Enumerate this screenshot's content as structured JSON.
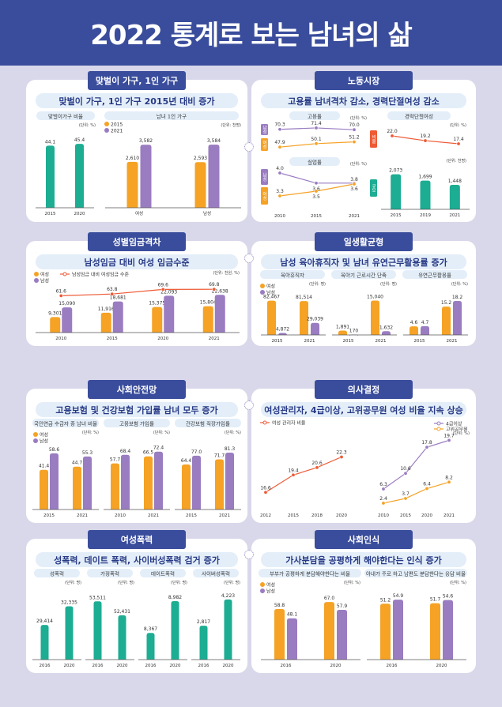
{
  "title": "2022 통계로 보는 남녀의 삶",
  "colors": {
    "female": "#f5a225",
    "male": "#9a7cc1",
    "teal": "#1cad93",
    "red": "#ee5a35",
    "header": "#3a4d9c"
  },
  "sections": {
    "s1": {
      "title": "맞벌이 가구, 1인 가구",
      "subtitle": "맞벌이 가구, 1인 가구 2015년 대비 증가"
    },
    "s2": {
      "title": "노동시장",
      "subtitle": "고용률 남녀격차 감소, 경력단절여성 감소"
    },
    "s3": {
      "title": "성별임금격차",
      "subtitle": "남성임금 대비 여성 임금수준"
    },
    "s4": {
      "title": "일생활균형",
      "subtitle": "남성 육아휴직자 및 남녀 유연근무활용률 증가"
    },
    "s5": {
      "title": "사회안전망",
      "subtitle": "고용보험 및 건강보험 가입률 남녀 모두 증가"
    },
    "s6": {
      "title": "의사결정",
      "subtitle": "여성관리자, 4급이상, 고위공무원 여성 비율 지속 상승"
    },
    "s7": {
      "title": "여성폭력",
      "subtitle": "성폭력, 데이트 폭력, 사이버성폭력 검거 증가"
    },
    "s8": {
      "title": "사회인식",
      "subtitle": "가사분담을 공평하게 해야한다는 인식 증가"
    }
  },
  "chart_data": [
    {
      "id": "c1",
      "type": "bar",
      "title": "맞벌이가구 비율",
      "unit": "(단위: %)",
      "categories": [
        "2015",
        "2020"
      ],
      "values": [
        44.1,
        45.4
      ],
      "labels": [
        "44.1",
        "45.4"
      ],
      "color": "teal",
      "ylim": [
        0,
        55
      ]
    },
    {
      "id": "c2",
      "type": "bar",
      "title": "남녀 1인 가구",
      "unit": "(단위: 천명)",
      "categories": [
        "여성",
        "남성"
      ],
      "series": [
        {
          "name": "2015",
          "values": [
            2610,
            2593
          ],
          "labels": [
            "2,610",
            "2,593"
          ],
          "color": "female"
        },
        {
          "name": "2021",
          "values": [
            3582,
            3584
          ],
          "labels": [
            "3,582",
            "3,584"
          ],
          "color": "male"
        }
      ],
      "ylim": [
        0,
        4400
      ]
    },
    {
      "id": "c3",
      "type": "line",
      "title": "고용률",
      "unit": "(단위: %)",
      "side_labels": [
        "남성",
        "여성"
      ],
      "categories": [
        "2010",
        "2015",
        "2021"
      ],
      "series": [
        {
          "name": "남성",
          "values": [
            70.3,
            71.4,
            70.0
          ],
          "labels": [
            "70.3",
            "71.4",
            "70.0"
          ],
          "color": "male"
        },
        {
          "name": "여성",
          "values": [
            47.9,
            50.1,
            51.2
          ],
          "labels": [
            "47.9",
            "50.1",
            "51.2"
          ],
          "color": "female"
        }
      ]
    },
    {
      "id": "c4",
      "type": "line",
      "title": "실업률",
      "unit": "(단위: %)",
      "side_labels": [
        "남성",
        "여성"
      ],
      "categories": [
        "2010",
        "2015",
        "2021"
      ],
      "series": [
        {
          "name": "남성",
          "values": [
            4.0,
            3.6,
            3.6
          ],
          "labels": [
            "4.0",
            "3.6",
            "3.6"
          ],
          "color": "male"
        },
        {
          "name": "여성",
          "values": [
            3.3,
            3.5,
            3.8
          ],
          "labels": [
            "3.3",
            "3.5",
            "3.8"
          ],
          "color": "female"
        }
      ]
    },
    {
      "id": "c5",
      "type": "line",
      "title": "경력단절여성",
      "unit": "(단위: %)",
      "side_label": "비율",
      "categories": [
        "2015",
        "2019",
        "2021"
      ],
      "values": [
        22.0,
        19.2,
        17.4
      ],
      "labels": [
        "22.0",
        "19.2",
        "17.4"
      ],
      "color": "red"
    },
    {
      "id": "c6",
      "type": "bar",
      "unit": "(단위: 천명)",
      "side_label": "규모",
      "categories": [
        "2015",
        "2019",
        "2021"
      ],
      "values": [
        2073,
        1699,
        1448
      ],
      "labels": [
        "2,073",
        "1,699",
        "1,448"
      ],
      "color": "teal",
      "ylim": [
        0,
        2800
      ]
    },
    {
      "id": "c7",
      "type": "bar",
      "unit": "(단위: 천원, %)",
      "legend": [
        "여성",
        "남성",
        "남성임금 대비 여성임금 수준"
      ],
      "categories": [
        "2010",
        "2015",
        "2020",
        "2021"
      ],
      "series": [
        {
          "name": "여성",
          "values": [
            9301,
            11916,
            15375,
            15804
          ],
          "labels": [
            "9,301",
            "11,916",
            "15,375",
            "15,804"
          ],
          "color": "female"
        },
        {
          "name": "남성",
          "values": [
            15090,
            18681,
            22093,
            22638
          ],
          "labels": [
            "15,090",
            "18,681",
            "22,093",
            "22,638"
          ],
          "color": "male"
        }
      ],
      "line": {
        "values": [
          61.6,
          63.8,
          69.6,
          69.8
        ],
        "labels": [
          "61.6",
          "63.8",
          "69.6",
          "69.8"
        ],
        "color": "red"
      },
      "ylim": [
        0,
        27500
      ]
    },
    {
      "id": "c8",
      "type": "bar",
      "title": "육아휴직자",
      "unit": "(단위: 명)",
      "categories": [
        "2015",
        "2021"
      ],
      "series": [
        {
          "name": "여성",
          "values": [
            82467,
            81514
          ],
          "labels": [
            "82,467",
            "81,514"
          ],
          "color": "female"
        },
        {
          "name": "남성",
          "values": [
            4872,
            29039
          ],
          "labels": [
            "4,872",
            "29,039"
          ],
          "color": "male"
        }
      ],
      "ylim": [
        0,
        99000
      ]
    },
    {
      "id": "c9",
      "type": "bar",
      "title": "육아기 근로시간 단축",
      "unit": "(단위: 명)",
      "categories": [
        "2015",
        "2021"
      ],
      "series": [
        {
          "name": "여성",
          "values": [
            1891,
            15040
          ],
          "labels": [
            "1,891",
            "15,040"
          ],
          "color": "female"
        },
        {
          "name": "남성",
          "values": [
            170,
            1632
          ],
          "labels": [
            "170",
            "1,632"
          ],
          "color": "male"
        }
      ],
      "ylim": [
        0,
        18000
      ]
    },
    {
      "id": "c10",
      "type": "bar",
      "title": "유연근무활용률",
      "unit": "(단위: %)",
      "categories": [
        "2015",
        "2021"
      ],
      "series": [
        {
          "name": "여성",
          "values": [
            4.6,
            15.2
          ],
          "labels": [
            "4.6",
            "15.2"
          ],
          "color": "female"
        },
        {
          "name": "남성",
          "values": [
            4.7,
            18.2
          ],
          "labels": [
            "4.7",
            "18.2"
          ],
          "color": "male"
        }
      ],
      "ylim": [
        0,
        22
      ]
    },
    {
      "id": "c11",
      "type": "bar",
      "title": "국민연금 수급자 중 남녀 비율",
      "unit": "(단위: %)",
      "legend": [
        "여성",
        "남성"
      ],
      "categories": [
        "2015",
        "2021"
      ],
      "series": [
        {
          "name": "여성",
          "values": [
            41.4,
            44.7
          ],
          "labels": [
            "41.4",
            "44.7"
          ],
          "color": "female"
        },
        {
          "name": "남성",
          "values": [
            58.6,
            55.3
          ],
          "labels": [
            "58.6",
            "55.3"
          ],
          "color": "male"
        }
      ],
      "ylim": [
        0,
        70
      ]
    },
    {
      "id": "c12",
      "type": "bar",
      "title": "고용보험 가입률",
      "unit": "(단위: %)",
      "categories": [
        "2010",
        "2021"
      ],
      "series": [
        {
          "name": "여성",
          "values": [
            57.7,
            66.5
          ],
          "labels": [
            "57.7",
            "66.5"
          ],
          "color": "female"
        },
        {
          "name": "남성",
          "values": [
            68.4,
            72.4
          ],
          "labels": [
            "68.4",
            "72.4"
          ],
          "color": "male"
        }
      ],
      "ylim": [
        0,
        84
      ]
    },
    {
      "id": "c13",
      "type": "bar",
      "title": "건강보험 직장가입률",
      "unit": "(단위: %)",
      "categories": [
        "2015",
        "2021"
      ],
      "series": [
        {
          "name": "여성",
          "values": [
            64.4,
            71.7
          ],
          "labels": [
            "64.4",
            "71.7"
          ],
          "color": "female"
        },
        {
          "name": "남성",
          "values": [
            77.0,
            81.3
          ],
          "labels": [
            "77.0",
            "81.3"
          ],
          "color": "male"
        }
      ],
      "ylim": [
        0,
        96
      ]
    },
    {
      "id": "c14",
      "type": "line",
      "unit": "(단위: %)",
      "legend": [
        "여성 관리자 비율"
      ],
      "categories": [
        "2012",
        "2015",
        "2018",
        "2020"
      ],
      "values": [
        16.6,
        19.4,
        20.6,
        22.3
      ],
      "labels": [
        "16.6",
        "19.4",
        "20.6",
        "22.3"
      ],
      "color": "red",
      "ylim": [
        10,
        30
      ]
    },
    {
      "id": "c15",
      "type": "line",
      "legend": [
        "4급이상",
        "고위공무원"
      ],
      "categories": [
        "2010",
        "2015",
        "2020",
        "2021"
      ],
      "series": [
        {
          "name": "4급이상",
          "values": [
            6.3,
            10.6,
            17.8,
            19.7
          ],
          "labels": [
            "6.3",
            "10.6",
            "17.8",
            "19.7"
          ],
          "color": "male"
        },
        {
          "name": "고위공무원",
          "values": [
            2.4,
            3.7,
            6.4,
            8.2
          ],
          "labels": [
            "2.4",
            "3.7",
            "6.4",
            "8.2"
          ],
          "color": "female"
        }
      ],
      "ylim": [
        0,
        21
      ]
    },
    {
      "id": "c16",
      "type": "bar",
      "title": "성폭력",
      "unit": "(단위: 명)",
      "categories": [
        "2016",
        "2020"
      ],
      "values": [
        29414,
        32335
      ],
      "labels": [
        "29,414",
        "32,335"
      ],
      "color": "teal",
      "ylim": [
        24000,
        34500
      ]
    },
    {
      "id": "c17",
      "type": "bar",
      "title": "가정폭력",
      "unit": "(단위: 명)",
      "categories": [
        "2016",
        "2020"
      ],
      "values": [
        53511,
        52431
      ],
      "labels": [
        "53,511",
        "52,431"
      ],
      "color": "teal",
      "ylim": [
        49000,
        54200
      ]
    },
    {
      "id": "c18",
      "type": "bar",
      "title": "데이트폭력",
      "unit": "(단위: 명)",
      "categories": [
        "2016",
        "2020"
      ],
      "values": [
        8367,
        8982
      ],
      "labels": [
        "8,367",
        "8,982"
      ],
      "color": "teal",
      "ylim": [
        7850,
        9150
      ]
    },
    {
      "id": "c19",
      "type": "bar",
      "title": "사이버성폭력",
      "unit": "(단위: 명)",
      "categories": [
        "2016",
        "2020"
      ],
      "values": [
        2817,
        4223
      ],
      "labels": [
        "2,817",
        "4,223"
      ],
      "color": "teal",
      "ylim": [
        1000,
        4600
      ]
    },
    {
      "id": "c20",
      "type": "bar",
      "title": "부부가 공평하게 분담해야한다는 비율",
      "unit": "(단위: %)",
      "legend": [
        "여성",
        "남성"
      ],
      "categories": [
        "2016",
        "2020"
      ],
      "series": [
        {
          "name": "여성",
          "values": [
            58.8,
            67.0
          ],
          "labels": [
            "58.8",
            "67.0"
          ],
          "color": "female"
        },
        {
          "name": "남성",
          "values": [
            48.1,
            57.9
          ],
          "labels": [
            "48.1",
            "57.9"
          ],
          "color": "male"
        }
      ],
      "ylim": [
        0,
        80
      ]
    },
    {
      "id": "c21",
      "type": "bar",
      "title": "아내가 주로 하고 남편도 분담한다는 응답 비율",
      "unit": "(단위: %)",
      "categories": [
        "2016",
        "2020"
      ],
      "series": [
        {
          "name": "여성",
          "values": [
            51.2,
            51.7
          ],
          "labels": [
            "51.2",
            "51.7"
          ],
          "color": "female"
        },
        {
          "name": "남성",
          "values": [
            54.9,
            54.6
          ],
          "labels": [
            "54.9",
            "54.6"
          ],
          "color": "male"
        }
      ],
      "ylim": [
        0,
        63
      ]
    }
  ]
}
